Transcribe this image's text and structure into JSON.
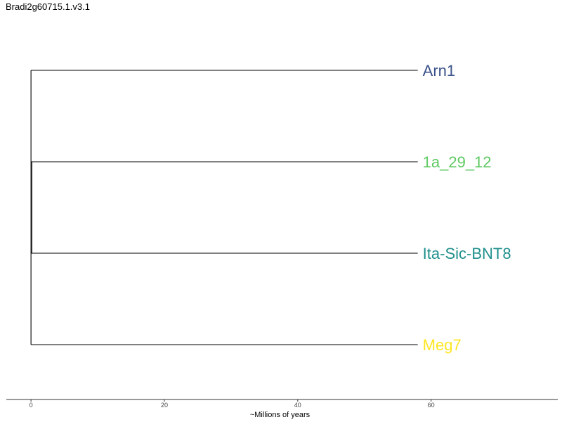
{
  "title": "Bradi2g60715.1.v3.1",
  "tree": {
    "leaves": [
      {
        "name": "Arn1",
        "color": "#3b518b"
      },
      {
        "name": "1a_29_12",
        "color": "#5ec962"
      },
      {
        "name": "Ita-Sic-BNT8",
        "color": "#21908d"
      },
      {
        "name": "Meg7",
        "color": "#fde725"
      }
    ],
    "branch_length": 58,
    "line_color": "#000000"
  },
  "axis": {
    "label": "~Millions of years",
    "min": -3.7,
    "max": 79,
    "ticks": [
      {
        "value": 0,
        "label": "0"
      },
      {
        "value": 20,
        "label": "20"
      },
      {
        "value": 40,
        "label": "40"
      },
      {
        "value": 60,
        "label": "60"
      }
    ]
  }
}
